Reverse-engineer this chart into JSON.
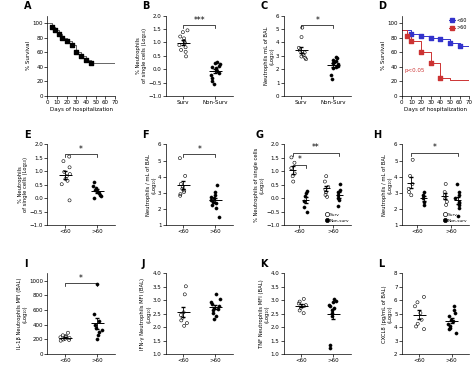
{
  "panel_A": {
    "label": "A",
    "xlabel": "Days of hospitalization",
    "ylabel": "% Survival",
    "times": [
      0,
      5,
      8,
      12,
      15,
      20,
      25,
      30,
      35,
      40,
      45,
      50,
      70
    ],
    "survival": [
      100,
      95,
      90,
      85,
      80,
      75,
      70,
      60,
      55,
      50,
      45,
      45,
      45
    ],
    "event_times": [
      5,
      8,
      12,
      15,
      20,
      25,
      30,
      35,
      40,
      45
    ],
    "event_surv": [
      95,
      90,
      85,
      80,
      75,
      70,
      60,
      55,
      50,
      45
    ]
  },
  "panel_B": {
    "label": "B",
    "ylabel": "% Neutrophils\nof single cells (Log₁₀)",
    "xlabel_groups": [
      "Surv",
      "Non-Surv"
    ],
    "surv_data": [
      1.45,
      1.38,
      1.22,
      1.15,
      1.05,
      0.98,
      0.9,
      0.82,
      0.72,
      0.65,
      0.48
    ],
    "nonsurv_data": [
      0.28,
      0.22,
      0.18,
      0.12,
      0.08,
      0.04,
      0.02,
      -0.05,
      -0.12,
      -0.22,
      -0.32,
      -0.42,
      -0.55
    ],
    "sig": "***",
    "ylim": [
      -1,
      2
    ]
  },
  "panel_C": {
    "label": "C",
    "ylabel": "Neutrophils mL of BAL\n(Log₁₀)",
    "xlabel_groups": [
      "Surv",
      "Non-Surv"
    ],
    "surv_data": [
      5.1,
      4.4,
      3.6,
      3.4,
      3.25,
      3.15,
      3.05,
      2.95,
      2.85,
      2.75
    ],
    "nonsurv_data": [
      2.95,
      2.82,
      2.72,
      2.65,
      2.55,
      2.48,
      2.38,
      2.28,
      2.18,
      2.08,
      1.55,
      1.25
    ],
    "sig": "*",
    "ylim": [
      0,
      6
    ]
  },
  "panel_D": {
    "label": "D",
    "xlabel": "Days of hospitalization",
    "ylabel": "% Survival",
    "times_young": [
      0,
      10,
      20,
      30,
      40,
      50,
      60,
      70
    ],
    "survival_young": [
      90,
      85,
      82,
      80,
      78,
      72,
      68,
      68
    ],
    "event_times_young": [
      10,
      20,
      30,
      40,
      50,
      60
    ],
    "event_surv_young": [
      85,
      82,
      80,
      78,
      72,
      68
    ],
    "times_old": [
      0,
      5,
      10,
      20,
      30,
      40,
      50,
      70
    ],
    "survival_old": [
      90,
      82,
      75,
      60,
      45,
      25,
      22,
      22
    ],
    "event_times_old": [
      5,
      10,
      20,
      30,
      40
    ],
    "event_surv_old": [
      82,
      75,
      60,
      45,
      25
    ],
    "color_young": "#3333cc",
    "color_old": "#cc3333",
    "legend_young": "<60",
    "legend_old": ">60",
    "sig_text": "p<0.05"
  },
  "panel_E": {
    "label": "E",
    "ylabel": "% Neutrophils\nof single cells (Log₁₀)",
    "xlabel_groups": [
      "<60",
      ">60"
    ],
    "young_data": [
      1.55,
      1.38,
      1.15,
      0.98,
      0.9,
      0.82,
      0.72,
      0.65,
      0.52,
      -0.08
    ],
    "old_data": [
      0.62,
      0.45,
      0.38,
      0.32,
      0.28,
      0.22,
      0.18,
      0.12,
      0.08,
      0.02
    ],
    "sig": "*",
    "ylim": [
      -1,
      2
    ]
  },
  "panel_F": {
    "label": "F",
    "ylabel": "Neutrophils / mL of BAL\n(Log₁₀)",
    "xlabel_groups": [
      "<60",
      ">60"
    ],
    "young_data": [
      5.15,
      4.05,
      3.55,
      3.38,
      3.25,
      3.15,
      3.05,
      2.92,
      2.82
    ],
    "old_data": [
      3.48,
      3.05,
      2.88,
      2.75,
      2.68,
      2.55,
      2.45,
      2.35,
      2.25,
      2.05,
      1.52
    ],
    "sig": "*",
    "ylim": [
      1,
      6
    ]
  },
  "panel_G": {
    "label": "G",
    "ylabel": "% Neutrophils of single cells\n(Log₁₀)",
    "xlabel_groups": [
      "<60",
      ">60"
    ],
    "surv_young": [
      1.52,
      1.32,
      1.12,
      0.92,
      0.82,
      0.62
    ],
    "nonsurv_young": [
      0.28,
      0.18,
      0.08,
      -0.12,
      -0.32,
      -0.52
    ],
    "surv_old": [
      0.82,
      0.62,
      0.42,
      0.32,
      0.22,
      0.12,
      0.05
    ],
    "nonsurv_old": [
      0.52,
      0.32,
      0.22,
      0.12,
      0.02,
      -0.08,
      -0.28
    ],
    "sig1": "*",
    "sig2": "**",
    "ylim": [
      -1,
      2
    ]
  },
  "panel_H": {
    "label": "H",
    "ylabel": "Neutrophils / mL of BAL\n(Log₁₀)",
    "xlabel_groups": [
      "<60",
      ">60"
    ],
    "surv_young": [
      5.05,
      4.05,
      3.55,
      3.25,
      3.05,
      2.85
    ],
    "nonsurv_young": [
      3.05,
      2.85,
      2.65,
      2.45,
      2.25
    ],
    "surv_old": [
      3.55,
      3.05,
      2.85,
      2.65,
      2.45,
      2.25
    ],
    "nonsurv_old": [
      3.55,
      3.05,
      2.85,
      2.65,
      2.45,
      2.35,
      2.25,
      2.05,
      1.55
    ],
    "sig": "*",
    "ylim": [
      1,
      6
    ]
  },
  "panel_I": {
    "label": "I",
    "ylabel": "IL-1β Neutrophils MFI (BAL)\n(Log₁₀)",
    "xlabel_groups": [
      "<60",
      ">60"
    ],
    "young_data": [
      290,
      255,
      245,
      235,
      228,
      218,
      208,
      198,
      192,
      182
    ],
    "old_data": [
      955,
      548,
      452,
      402,
      358,
      325,
      305,
      255,
      205
    ],
    "sig": "*",
    "ylim": [
      0,
      1100
    ],
    "yticks": [
      0,
      200,
      400,
      600,
      800,
      1000
    ]
  },
  "panel_J": {
    "label": "J",
    "ylabel": "IFN-γ Neutrophils MFI (BAL)\n(Log₁₀)",
    "xlabel_groups": [
      "<60",
      ">60"
    ],
    "young_data": [
      3.52,
      3.22,
      2.55,
      2.45,
      2.35,
      2.25,
      2.15,
      2.05
    ],
    "old_data": [
      3.22,
      3.05,
      2.95,
      2.85,
      2.78,
      2.72,
      2.68,
      2.62,
      2.52,
      2.42,
      2.32
    ],
    "ylim": [
      1,
      4
    ]
  },
  "panel_K": {
    "label": "K",
    "ylabel": "TNF Neutrophils MFI (BAL)\n(Log₁₀)",
    "xlabel_groups": [
      "<60",
      ">60"
    ],
    "young_data": [
      3.05,
      2.95,
      2.88,
      2.82,
      2.78,
      2.72,
      2.62,
      2.52
    ],
    "old_data": [
      3.05,
      2.98,
      2.92,
      2.82,
      2.78,
      2.72,
      2.62,
      2.52,
      2.42,
      1.32,
      1.22
    ],
    "ylim": [
      1,
      4
    ]
  },
  "panel_L": {
    "label": "L",
    "ylabel": "CXCL8 (pg/mL of BAL)\n(Log₁₀)",
    "xlabel_groups": [
      "<60",
      ">60"
    ],
    "young_data": [
      6.25,
      5.85,
      5.55,
      5.05,
      4.55,
      4.25,
      4.05,
      3.85
    ],
    "old_data": [
      5.55,
      5.25,
      5.05,
      4.85,
      4.55,
      4.45,
      4.25,
      4.05,
      3.95,
      3.85,
      3.55
    ],
    "ylim": [
      2,
      8
    ]
  }
}
